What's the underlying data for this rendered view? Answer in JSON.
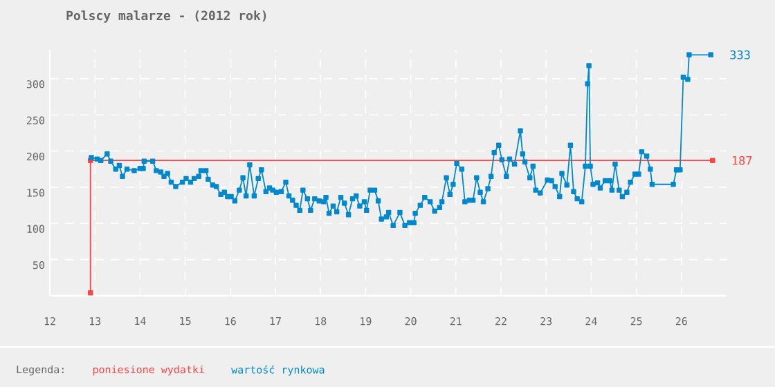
{
  "chart_data": {
    "type": "line",
    "title": "Polscy malarze - (2012 rok)",
    "legend_title": "Legenda:",
    "legend": "bottom",
    "grid": true,
    "marker": "square",
    "xlim": [
      12,
      27
    ],
    "xticks": [
      12,
      13,
      14,
      15,
      16,
      17,
      18,
      19,
      20,
      21,
      22,
      23,
      24,
      25,
      26
    ],
    "ylim": [
      0,
      340
    ],
    "yticks": [
      50,
      100,
      150,
      200,
      250,
      300
    ],
    "series": [
      {
        "name": "poniesione wydatki",
        "color": "#ff4444",
        "x": [
          12.9,
          12.9,
          26.69
        ],
        "values": [
          4,
          187,
          187
        ],
        "value_labels": [
          null,
          null,
          "187"
        ]
      },
      {
        "name": "wartość rynkowa",
        "color": "#0088cc",
        "x": [
          12.92,
          13.05,
          13.13,
          13.27,
          13.35,
          13.46,
          13.54,
          13.61,
          13.71,
          13.87,
          14.0,
          14.07,
          14.09,
          14.28,
          14.36,
          14.46,
          14.53,
          14.61,
          14.69,
          14.79,
          14.94,
          15.02,
          15.12,
          15.2,
          15.3,
          15.35,
          15.46,
          15.51,
          15.61,
          15.69,
          15.79,
          15.87,
          15.94,
          16.02,
          16.1,
          16.2,
          16.28,
          16.35,
          16.43,
          16.53,
          16.62,
          16.69,
          16.79,
          16.87,
          16.94,
          17.02,
          17.13,
          17.23,
          17.3,
          17.38,
          17.46,
          17.54,
          17.61,
          17.71,
          17.78,
          17.87,
          17.97,
          18.07,
          18.12,
          18.19,
          18.28,
          18.36,
          18.45,
          18.53,
          18.62,
          18.71,
          18.79,
          18.87,
          18.97,
          19.02,
          19.1,
          19.2,
          19.28,
          19.35,
          19.46,
          19.51,
          19.61,
          19.76,
          19.87,
          19.97,
          20.07,
          20.1,
          20.21,
          20.31,
          20.43,
          20.53,
          20.64,
          20.69,
          20.79,
          20.87,
          20.94,
          21.02,
          21.13,
          21.2,
          21.3,
          21.38,
          21.46,
          21.54,
          21.61,
          21.71,
          21.78,
          21.85,
          21.95,
          22.02,
          22.12,
          22.19,
          22.3,
          22.43,
          22.48,
          22.53,
          22.64,
          22.71,
          22.77,
          22.87,
          23.03,
          23.12,
          23.2,
          23.3,
          23.35,
          23.46,
          23.54,
          23.61,
          23.69,
          23.79,
          23.87,
          23.92,
          23.95,
          23.98,
          24.04,
          24.14,
          24.2,
          24.31,
          24.41,
          24.46,
          24.53,
          24.62,
          24.69,
          24.79,
          24.87,
          24.97,
          25.05,
          25.12,
          25.23,
          25.31,
          25.35,
          25.82,
          25.89,
          25.97,
          26.04,
          26.14,
          26.17,
          26.65
        ],
        "values": [
          191,
          189,
          187,
          196,
          186,
          175,
          180,
          165,
          175,
          173,
          176,
          176,
          186,
          186,
          173,
          171,
          165,
          169,
          157,
          151,
          157,
          162,
          157,
          162,
          165,
          173,
          173,
          161,
          153,
          151,
          140,
          143,
          137,
          137,
          131,
          146,
          163,
          138,
          181,
          138,
          162,
          174,
          144,
          149,
          146,
          143,
          144,
          157,
          138,
          132,
          125,
          118,
          146,
          134,
          118,
          134,
          131,
          130,
          136,
          114,
          124,
          116,
          136,
          128,
          112,
          134,
          138,
          124,
          130,
          118,
          146,
          146,
          131,
          106,
          109,
          115,
          97,
          115,
          97,
          101,
          101,
          114,
          125,
          136,
          130,
          117,
          122,
          130,
          163,
          140,
          154,
          183,
          175,
          130,
          132,
          132,
          163,
          143,
          130,
          148,
          165,
          198,
          208,
          188,
          165,
          189,
          182,
          228,
          196,
          185,
          163,
          179,
          146,
          142,
          160,
          159,
          151,
          137,
          169,
          153,
          208,
          144,
          134,
          130,
          179,
          293,
          318,
          179,
          154,
          156,
          149,
          159,
          159,
          146,
          182,
          146,
          137,
          143,
          157,
          168,
          168,
          199,
          193,
          175,
          154,
          154,
          174,
          174,
          302,
          299,
          333,
          333
        ],
        "value_labels": [
          null,
          null,
          null,
          null,
          null,
          null,
          null,
          null,
          null,
          null,
          null,
          null,
          null,
          null,
          null,
          null,
          null,
          null,
          null,
          null,
          null,
          null,
          null,
          null,
          null,
          null,
          null,
          null,
          null,
          null,
          null,
          null,
          null,
          null,
          null,
          null,
          null,
          null,
          null,
          null,
          null,
          null,
          null,
          null,
          null,
          null,
          null,
          null,
          null,
          null,
          null,
          null,
          null,
          null,
          null,
          null,
          null,
          null,
          null,
          null,
          null,
          null,
          null,
          null,
          null,
          null,
          null,
          null,
          null,
          null,
          null,
          null,
          null,
          null,
          null,
          null,
          null,
          null,
          null,
          null,
          null,
          null,
          null,
          null,
          null,
          null,
          null,
          null,
          null,
          null,
          null,
          null,
          null,
          null,
          null,
          null,
          null,
          null,
          null,
          null,
          null,
          null,
          null,
          null,
          null,
          null,
          null,
          null,
          null,
          null,
          null,
          null,
          null,
          null,
          null,
          null,
          null,
          null,
          null,
          null,
          null,
          null,
          null,
          null,
          null,
          null,
          null,
          null,
          null,
          null,
          null,
          null,
          null,
          null,
          null,
          null,
          null,
          null,
          null,
          null,
          null,
          null,
          null,
          null,
          null,
          null,
          null,
          null,
          null,
          null,
          null,
          "333"
        ]
      }
    ]
  }
}
